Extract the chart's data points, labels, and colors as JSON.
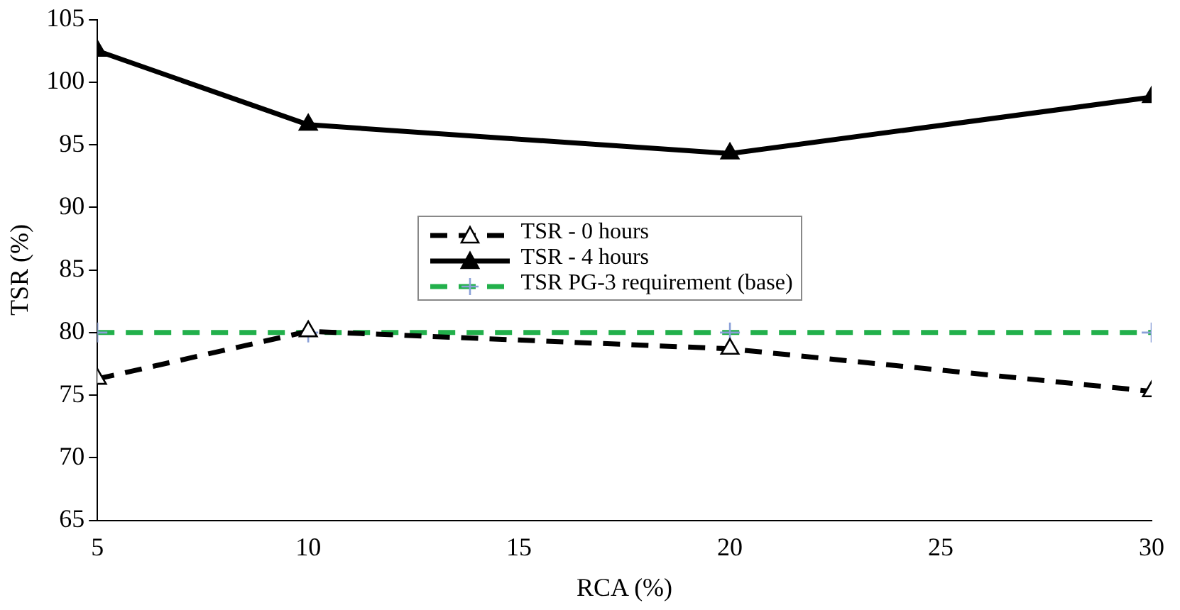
{
  "chart_data": {
    "type": "line",
    "xlabel": "RCA (%)",
    "ylabel": "TSR (%)",
    "x": [
      5,
      10,
      20,
      30
    ],
    "xlim": [
      5,
      30
    ],
    "xticks": [
      5,
      10,
      15,
      20,
      25,
      30
    ],
    "ylim": [
      65,
      105
    ],
    "yticks": [
      65,
      70,
      75,
      80,
      85,
      90,
      95,
      100,
      105
    ],
    "legend": "center",
    "grid": false,
    "series": [
      {
        "name": "TSR - 0 hours",
        "color": "#000000",
        "values": [
          76.3,
          80.1,
          78.7,
          75.3
        ],
        "marker": "triangle",
        "line_style": "dashed"
      },
      {
        "name": "TSR - 4 hours",
        "color": "#000000",
        "values": [
          102.5,
          96.6,
          94.3,
          98.8
        ],
        "marker": "triangle",
        "line_style": "solid"
      },
      {
        "name": "TSR PG-3 requirement (base)",
        "color": "#22b04b",
        "values": [
          80,
          80,
          80,
          80
        ],
        "marker": "cross",
        "line_style": "dashed"
      }
    ]
  }
}
